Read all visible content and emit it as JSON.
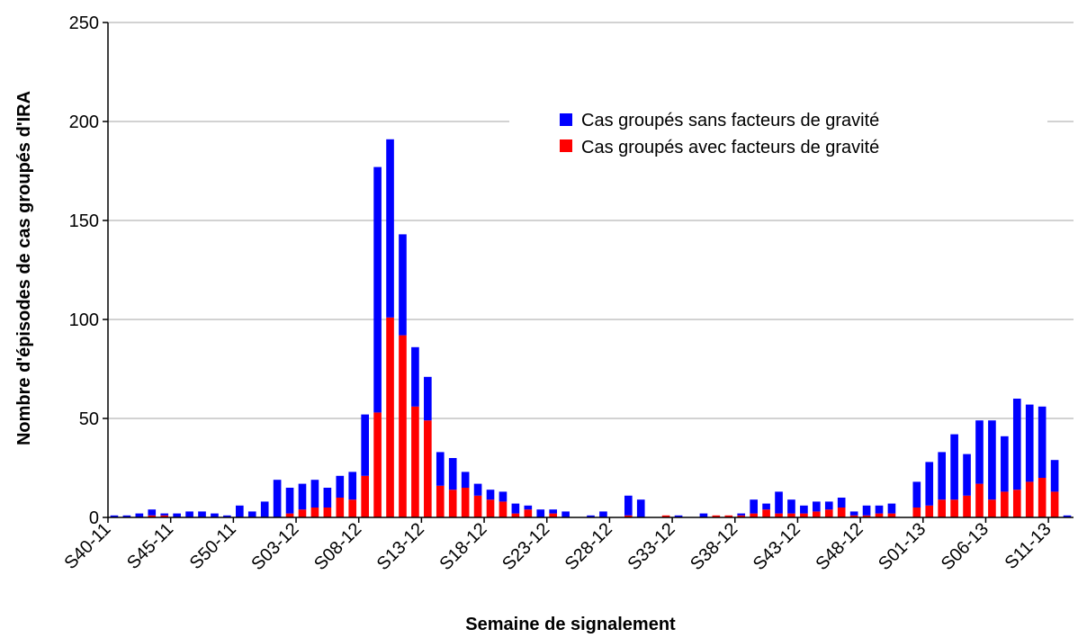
{
  "chart_data": {
    "type": "bar",
    "stacked": true,
    "title": "",
    "xlabel": "Semaine de signalement",
    "ylabel": "Nombre d'épisodes de cas groupés d'IRA",
    "ylim": [
      0,
      250
    ],
    "yticks": [
      0,
      50,
      100,
      150,
      200,
      250
    ],
    "grid": true,
    "legend_position": "top-right",
    "colors": {
      "sans": "#0000ff",
      "avec": "#ff0000",
      "grid": "#a6a6a6"
    },
    "x_tick_labels": [
      "S40-11",
      "S45-11",
      "S50-11",
      "S03-12",
      "S08-12",
      "S13-12",
      "S18-12",
      "S23-12",
      "S28-12",
      "S33-12",
      "S38-12",
      "S43-12",
      "S48-12",
      "S01-13",
      "S06-13",
      "S11-13"
    ],
    "label_every": 5,
    "categories": [
      "S40-11",
      "S41-11",
      "S42-11",
      "S43-11",
      "S44-11",
      "S45-11",
      "S46-11",
      "S47-11",
      "S48-11",
      "S49-11",
      "S50-11",
      "S51-11",
      "S52-11",
      "S01-12",
      "S02-12",
      "S03-12",
      "S04-12",
      "S05-12",
      "S06-12",
      "S07-12",
      "S08-12",
      "S09-12",
      "S10-12",
      "S11-12",
      "S12-12",
      "S13-12",
      "S14-12",
      "S15-12",
      "S16-12",
      "S17-12",
      "S18-12",
      "S19-12",
      "S20-12",
      "S21-12",
      "S22-12",
      "S23-12",
      "S24-12",
      "S25-12",
      "S26-12",
      "S27-12",
      "S28-12",
      "S29-12",
      "S30-12",
      "S31-12",
      "S32-12",
      "S33-12",
      "S34-12",
      "S35-12",
      "S36-12",
      "S37-12",
      "S38-12",
      "S39-12",
      "S40-12",
      "S41-12",
      "S42-12",
      "S43-12",
      "S44-12",
      "S45-12",
      "S46-12",
      "S47-12",
      "S48-12",
      "S49-12",
      "S50-12",
      "S51-12",
      "S52-12",
      "S01-13",
      "S02-13",
      "S03-13",
      "S04-13",
      "S05-13",
      "S06-13",
      "S07-13",
      "S08-13",
      "S09-13",
      "S10-13",
      "S11-13",
      "S12-13"
    ],
    "series": [
      {
        "name": "Cas groupés avec facteurs de gravité",
        "color": "#ff0000",
        "values": [
          0,
          0,
          0,
          1,
          1,
          0,
          0,
          0,
          0,
          0,
          0,
          0,
          0,
          0,
          2,
          4,
          5,
          5,
          10,
          9,
          21,
          53,
          101,
          92,
          56,
          49,
          16,
          14,
          15,
          11,
          9,
          8,
          2,
          4,
          0,
          2,
          0,
          0,
          0,
          0,
          0,
          1,
          0,
          0,
          1,
          0,
          0,
          0,
          1,
          1,
          1,
          2,
          4,
          2,
          2,
          2,
          3,
          4,
          5,
          1,
          1,
          2,
          2,
          0,
          5,
          6,
          9,
          9,
          11,
          17,
          9,
          13,
          14,
          18,
          20,
          13,
          0
        ]
      },
      {
        "name": "Cas groupés sans facteurs de gravité",
        "color": "#0000ff",
        "values": [
          1,
          1,
          2,
          3,
          1,
          2,
          3,
          3,
          2,
          1,
          6,
          3,
          8,
          19,
          13,
          13,
          14,
          10,
          11,
          14,
          31,
          124,
          90,
          51,
          30,
          22,
          17,
          16,
          8,
          6,
          5,
          5,
          5,
          2,
          4,
          2,
          3,
          0,
          1,
          3,
          0,
          10,
          9,
          0,
          0,
          1,
          0,
          2,
          0,
          0,
          1,
          7,
          3,
          11,
          7,
          4,
          5,
          4,
          5,
          2,
          5,
          4,
          5,
          0,
          13,
          22,
          24,
          33,
          21,
          32,
          40,
          28,
          46,
          39,
          36,
          16,
          1
        ]
      }
    ]
  }
}
